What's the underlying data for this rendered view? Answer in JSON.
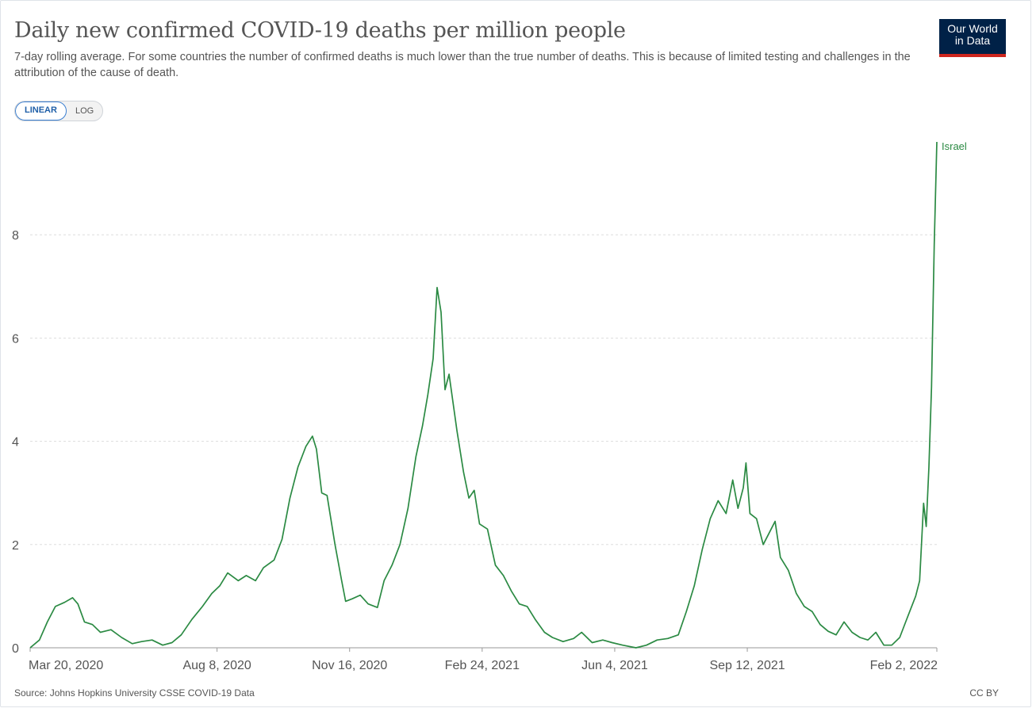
{
  "header": {
    "title": "Daily new confirmed COVID-19 deaths per million people",
    "subtitle": "7-day rolling average. For some countries the number of confirmed deaths is much lower than the true number of deaths. This is because of limited testing and challenges in the attribution of the cause of death.",
    "logo_line1": "Our World",
    "logo_line2": "in Data"
  },
  "scale_toggle": {
    "linear_label": "LINEAR",
    "log_label": "LOG",
    "selected": "LINEAR"
  },
  "footer": {
    "source": "Source: Johns Hopkins University CSSE COVID-19 Data",
    "license": "CC BY"
  },
  "colors": {
    "series": "#2b8a43",
    "grid": "#dddddd",
    "axis": "#999999",
    "logo_bg": "#002147",
    "logo_accent": "#ce261e"
  },
  "chart_data": {
    "type": "line",
    "title": "Daily new confirmed COVID-19 deaths per million people",
    "xlabel": "",
    "ylabel": "",
    "ylim": [
      0,
      9.8
    ],
    "xlim": [
      "2020-03-20",
      "2022-02-02"
    ],
    "yticks": [
      0,
      2,
      4,
      6,
      8
    ],
    "x_tick_labels": [
      {
        "date": "2020-03-20",
        "label": "Mar 20, 2020"
      },
      {
        "date": "2020-08-08",
        "label": "Aug 8, 2020"
      },
      {
        "date": "2020-11-16",
        "label": "Nov 16, 2020"
      },
      {
        "date": "2021-02-24",
        "label": "Feb 24, 2021"
      },
      {
        "date": "2021-06-04",
        "label": "Jun 4, 2021"
      },
      {
        "date": "2021-09-12",
        "label": "Sep 12, 2021"
      },
      {
        "date": "2022-02-02",
        "label": "Feb 2, 2022"
      }
    ],
    "grid": true,
    "series": [
      {
        "name": "Israel",
        "points": [
          [
            "2020-03-20",
            0.0
          ],
          [
            "2020-03-27",
            0.15
          ],
          [
            "2020-04-02",
            0.5
          ],
          [
            "2020-04-08",
            0.8
          ],
          [
            "2020-04-15",
            0.88
          ],
          [
            "2020-04-21",
            0.97
          ],
          [
            "2020-04-25",
            0.85
          ],
          [
            "2020-04-30",
            0.5
          ],
          [
            "2020-05-06",
            0.45
          ],
          [
            "2020-05-12",
            0.3
          ],
          [
            "2020-05-20",
            0.35
          ],
          [
            "2020-05-28",
            0.2
          ],
          [
            "2020-06-05",
            0.08
          ],
          [
            "2020-06-12",
            0.12
          ],
          [
            "2020-06-20",
            0.15
          ],
          [
            "2020-06-28",
            0.05
          ],
          [
            "2020-07-05",
            0.1
          ],
          [
            "2020-07-12",
            0.25
          ],
          [
            "2020-07-20",
            0.55
          ],
          [
            "2020-07-28",
            0.8
          ],
          [
            "2020-08-04",
            1.05
          ],
          [
            "2020-08-10",
            1.2
          ],
          [
            "2020-08-16",
            1.45
          ],
          [
            "2020-08-24",
            1.3
          ],
          [
            "2020-08-30",
            1.4
          ],
          [
            "2020-09-06",
            1.3
          ],
          [
            "2020-09-12",
            1.55
          ],
          [
            "2020-09-20",
            1.7
          ],
          [
            "2020-09-26",
            2.1
          ],
          [
            "2020-10-02",
            2.9
          ],
          [
            "2020-10-08",
            3.5
          ],
          [
            "2020-10-14",
            3.9
          ],
          [
            "2020-10-19",
            4.1
          ],
          [
            "2020-10-22",
            3.85
          ],
          [
            "2020-10-26",
            3.0
          ],
          [
            "2020-10-30",
            2.95
          ],
          [
            "2020-11-05",
            2.0
          ],
          [
            "2020-11-10",
            1.3
          ],
          [
            "2020-11-13",
            0.9
          ],
          [
            "2020-11-18",
            0.95
          ],
          [
            "2020-11-24",
            1.02
          ],
          [
            "2020-11-30",
            0.85
          ],
          [
            "2020-12-07",
            0.78
          ],
          [
            "2020-12-12",
            1.3
          ],
          [
            "2020-12-18",
            1.6
          ],
          [
            "2020-12-24",
            2.0
          ],
          [
            "2020-12-30",
            2.7
          ],
          [
            "2021-01-05",
            3.7
          ],
          [
            "2021-01-10",
            4.3
          ],
          [
            "2021-01-14",
            4.9
          ],
          [
            "2021-01-18",
            5.6
          ],
          [
            "2021-01-21",
            6.98
          ],
          [
            "2021-01-24",
            6.5
          ],
          [
            "2021-01-27",
            5.0
          ],
          [
            "2021-01-30",
            5.3
          ],
          [
            "2021-02-05",
            4.2
          ],
          [
            "2021-02-10",
            3.4
          ],
          [
            "2021-02-14",
            2.9
          ],
          [
            "2021-02-18",
            3.05
          ],
          [
            "2021-02-22",
            2.4
          ],
          [
            "2021-02-28",
            2.3
          ],
          [
            "2021-03-06",
            1.6
          ],
          [
            "2021-03-12",
            1.4
          ],
          [
            "2021-03-18",
            1.1
          ],
          [
            "2021-03-24",
            0.85
          ],
          [
            "2021-03-30",
            0.8
          ],
          [
            "2021-04-05",
            0.55
          ],
          [
            "2021-04-12",
            0.3
          ],
          [
            "2021-04-18",
            0.2
          ],
          [
            "2021-04-26",
            0.12
          ],
          [
            "2021-05-04",
            0.18
          ],
          [
            "2021-05-10",
            0.3
          ],
          [
            "2021-05-18",
            0.1
          ],
          [
            "2021-05-26",
            0.15
          ],
          [
            "2021-06-02",
            0.1
          ],
          [
            "2021-06-10",
            0.05
          ],
          [
            "2021-06-20",
            0.0
          ],
          [
            "2021-06-28",
            0.05
          ],
          [
            "2021-07-06",
            0.15
          ],
          [
            "2021-07-14",
            0.18
          ],
          [
            "2021-07-22",
            0.25
          ],
          [
            "2021-07-28",
            0.7
          ],
          [
            "2021-08-03",
            1.2
          ],
          [
            "2021-08-09",
            1.9
          ],
          [
            "2021-08-15",
            2.5
          ],
          [
            "2021-08-21",
            2.85
          ],
          [
            "2021-08-27",
            2.6
          ],
          [
            "2021-09-01",
            3.25
          ],
          [
            "2021-09-05",
            2.7
          ],
          [
            "2021-09-09",
            3.1
          ],
          [
            "2021-09-11",
            3.58
          ],
          [
            "2021-09-14",
            2.6
          ],
          [
            "2021-09-19",
            2.5
          ],
          [
            "2021-09-24",
            2.0
          ],
          [
            "2021-09-28",
            2.2
          ],
          [
            "2021-10-03",
            2.45
          ],
          [
            "2021-10-07",
            1.75
          ],
          [
            "2021-10-13",
            1.5
          ],
          [
            "2021-10-19",
            1.05
          ],
          [
            "2021-10-25",
            0.8
          ],
          [
            "2021-10-31",
            0.7
          ],
          [
            "2021-11-06",
            0.45
          ],
          [
            "2021-11-12",
            0.32
          ],
          [
            "2021-11-18",
            0.25
          ],
          [
            "2021-11-24",
            0.5
          ],
          [
            "2021-11-30",
            0.3
          ],
          [
            "2021-12-06",
            0.2
          ],
          [
            "2021-12-12",
            0.15
          ],
          [
            "2021-12-18",
            0.3
          ],
          [
            "2021-12-24",
            0.05
          ],
          [
            "2021-12-30",
            0.05
          ],
          [
            "2022-01-05",
            0.2
          ],
          [
            "2022-01-11",
            0.6
          ],
          [
            "2022-01-17",
            1.0
          ],
          [
            "2022-01-20",
            1.3
          ],
          [
            "2022-01-23",
            2.8
          ],
          [
            "2022-01-25",
            2.35
          ],
          [
            "2022-01-27",
            3.5
          ],
          [
            "2022-01-29",
            5.05
          ],
          [
            "2022-01-31",
            7.8
          ],
          [
            "2022-02-02",
            9.8
          ]
        ]
      }
    ]
  }
}
